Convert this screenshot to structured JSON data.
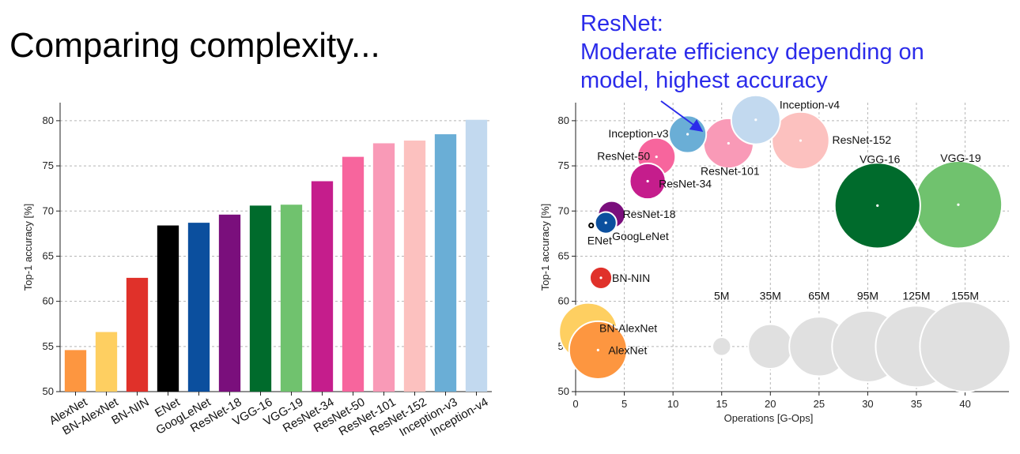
{
  "slide_title": "Comparing complexity...",
  "callout": {
    "lines": [
      "ResNet:",
      "Moderate efficiency depending on",
      "model, highest accuracy"
    ],
    "color": "#2b2bea"
  },
  "chart_data": [
    {
      "type": "bar",
      "title": "",
      "xlabel": "",
      "ylabel": "Top-1 accuracy [%]",
      "ylim": [
        50,
        82
      ],
      "yticks": [
        50,
        55,
        60,
        65,
        70,
        75,
        80
      ],
      "grid": true,
      "categories": [
        "AlexNet",
        "BN-AlexNet",
        "BN-NIN",
        "ENet",
        "GoogLeNet",
        "ResNet-18",
        "VGG-16",
        "VGG-19",
        "ResNet-34",
        "ResNet-50",
        "ResNet-101",
        "ResNet-152",
        "Inception-v3",
        "Inception-v4"
      ],
      "values": [
        54.6,
        56.6,
        62.6,
        68.4,
        68.7,
        69.6,
        70.6,
        70.7,
        73.3,
        76.0,
        77.5,
        77.8,
        78.5,
        80.1
      ],
      "colors": [
        "#fd9640",
        "#fecf61",
        "#e0312a",
        "#000000",
        "#0b4f9e",
        "#7a0f7c",
        "#006b2c",
        "#70c26e",
        "#c51d8c",
        "#f7659d",
        "#f99ab7",
        "#fcc1bf",
        "#6aaed6",
        "#c2d9ef"
      ]
    },
    {
      "type": "scatter",
      "title": "",
      "xlabel": "Operations [G-Ops]",
      "ylabel": "Top-1 accuracy [%]",
      "xlim": [
        0,
        44.5
      ],
      "ylim": [
        50,
        82
      ],
      "xticks": [
        0,
        5,
        10,
        15,
        20,
        25,
        30,
        35,
        40
      ],
      "yticks": [
        50,
        55,
        60,
        65,
        70,
        75,
        80
      ],
      "grid": true,
      "points": [
        {
          "name": "AlexNet",
          "x": 2.3,
          "y": 54.6,
          "params_m": 61,
          "color": "#fd9640"
        },
        {
          "name": "BN-AlexNet",
          "x": 1.3,
          "y": 56.6,
          "params_m": 62,
          "color": "#fecf61"
        },
        {
          "name": "BN-NIN",
          "x": 2.6,
          "y": 62.6,
          "params_m": 7.6,
          "color": "#e0312a"
        },
        {
          "name": "ENet",
          "x": 1.6,
          "y": 68.4,
          "params_m": 0.4,
          "color": "#000000"
        },
        {
          "name": "GoogLeNet",
          "x": 3.1,
          "y": 68.7,
          "params_m": 7,
          "color": "#0b4f9e"
        },
        {
          "name": "ResNet-18",
          "x": 3.7,
          "y": 69.6,
          "params_m": 12,
          "color": "#7a0f7c"
        },
        {
          "name": "VGG-16",
          "x": 31,
          "y": 70.6,
          "params_m": 138,
          "color": "#006b2c"
        },
        {
          "name": "VGG-19",
          "x": 39.3,
          "y": 70.7,
          "params_m": 144,
          "color": "#70c26e"
        },
        {
          "name": "ResNet-34",
          "x": 7.4,
          "y": 73.3,
          "params_m": 22,
          "color": "#c51d8c"
        },
        {
          "name": "ResNet-50",
          "x": 8.3,
          "y": 76.0,
          "params_m": 25,
          "color": "#f7659d"
        },
        {
          "name": "ResNet-101",
          "x": 15.7,
          "y": 77.5,
          "params_m": 45,
          "color": "#f99ab7"
        },
        {
          "name": "ResNet-152",
          "x": 23.1,
          "y": 77.8,
          "params_m": 60,
          "color": "#fcc1bf"
        },
        {
          "name": "Inception-v3",
          "x": 11.5,
          "y": 78.5,
          "params_m": 24,
          "color": "#6aaed6"
        },
        {
          "name": "Inception-v4",
          "x": 18.5,
          "y": 80.1,
          "params_m": 43,
          "color": "#c2d9ef"
        }
      ],
      "size_legend": {
        "labels": [
          "5M",
          "35M",
          "65M",
          "95M",
          "125M",
          "155M"
        ],
        "params_m": [
          5,
          35,
          65,
          95,
          125,
          155
        ],
        "x": [
          15,
          20,
          25,
          30,
          35,
          40
        ],
        "y": 55,
        "color": "#e0e0e0"
      }
    }
  ]
}
